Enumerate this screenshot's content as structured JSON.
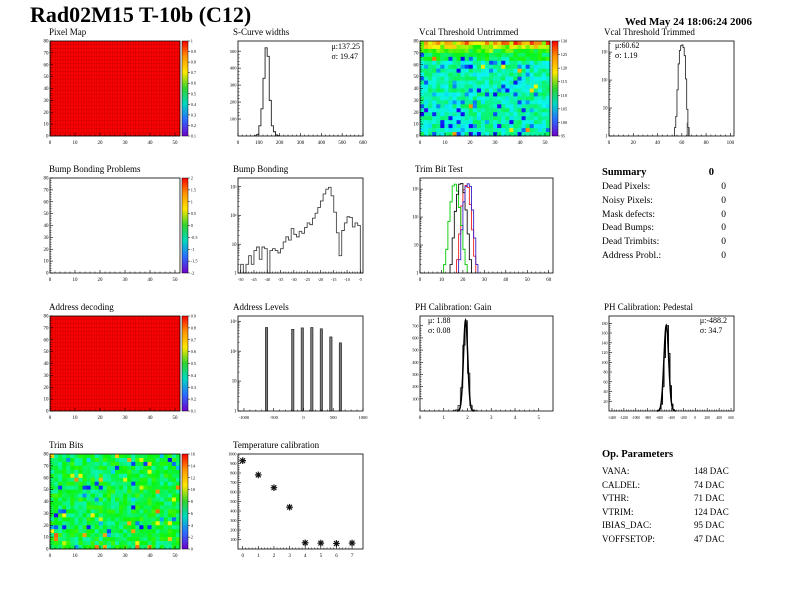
{
  "page": {
    "title": "Rad02M15 T-10b (C12)",
    "timestamp": "Wed May 24 18:06:24 2006"
  },
  "summary": {
    "title": "Summary",
    "total": "0",
    "rows": [
      {
        "label": "Dead Pixels:",
        "value": "0"
      },
      {
        "label": "Noisy Pixels:",
        "value": "0"
      },
      {
        "label": "Mask defects:",
        "value": "0"
      },
      {
        "label": "Dead Bumps:",
        "value": "0"
      },
      {
        "label": "Dead Trimbits:",
        "value": "0"
      },
      {
        "label": "Address Probl.:",
        "value": "0"
      }
    ]
  },
  "op_parameters": {
    "title": "Op. Parameters",
    "rows": [
      {
        "label": "VANA:",
        "value": "148 DAC"
      },
      {
        "label": "CALDEL:",
        "value": "74 DAC"
      },
      {
        "label": "VTHR:",
        "value": "71 DAC"
      },
      {
        "label": "VTRIM:",
        "value": "124 DAC"
      },
      {
        "label": "IBIAS_DAC:",
        "value": "95 DAC"
      },
      {
        "label": "VOFFSETOP:",
        "value": "47 DAC"
      }
    ]
  },
  "chart_data": [
    {
      "target": "pixel-map",
      "title": "Pixel Map",
      "type": "heatmap",
      "variant": "uniform-red",
      "color": "#fb0202",
      "x": {
        "min": 0,
        "max": 52,
        "ticks": [
          0,
          10,
          20,
          30,
          40,
          50
        ]
      },
      "y": {
        "min": 0,
        "max": 80,
        "ticks": [
          0,
          10,
          20,
          30,
          40,
          50,
          60,
          70,
          80
        ]
      },
      "colorbar": {
        "labels": [
          "1",
          "0.9",
          "0.8",
          "0.7",
          "0.6",
          "0.5",
          "0.4",
          "0.3",
          "0.2",
          "0.1"
        ]
      }
    },
    {
      "target": "s-curve",
      "title": "S-Curve widths",
      "type": "histogram",
      "stats": {
        "mu": "μ:137.25",
        "sigma": "σ: 19.47"
      },
      "x": {
        "min": 0,
        "max": 600,
        "ticks": [
          0,
          100,
          200,
          300,
          400,
          500,
          600
        ]
      },
      "y": {
        "min": 0,
        "max": 560,
        "ticks": [
          100,
          200,
          300,
          400,
          500
        ],
        "fs": 4.5
      },
      "bin_width": 10,
      "color": "#222222",
      "bins": [
        [
          80,
          2
        ],
        [
          90,
          10
        ],
        [
          100,
          60
        ],
        [
          110,
          160
        ],
        [
          120,
          340
        ],
        [
          130,
          520
        ],
        [
          140,
          470
        ],
        [
          150,
          210
        ],
        [
          160,
          60
        ],
        [
          170,
          25
        ],
        [
          180,
          6
        ],
        [
          190,
          2
        ]
      ]
    },
    {
      "target": "vcal-untrimmed",
      "title": "Vcal Threshold Untrimmed",
      "type": "heatmap",
      "variant": "noise",
      "noise": {
        "style": "vcal",
        "seed": 7,
        "cols": 32,
        "rows": 24,
        "scale": [
          90,
          130
        ]
      },
      "x": {
        "min": 0,
        "max": 52,
        "ticks": [
          0,
          10,
          20,
          30,
          40,
          50
        ]
      },
      "y": {
        "min": 0,
        "max": 80,
        "ticks": [
          0,
          10,
          20,
          30,
          40,
          50,
          60,
          70,
          80
        ]
      },
      "colorbar": {
        "labels": [
          "130",
          "125",
          "120",
          "115",
          "110",
          "105",
          "100",
          "95"
        ]
      }
    },
    {
      "target": "vcal-trimmed",
      "title": "Vcal Threshold Trimmed",
      "type": "histogram",
      "stats": {
        "mu": "μ:60.62",
        "sigma": "σ: 1.19"
      },
      "x": {
        "min": 0,
        "max": 103,
        "ticks": [
          0,
          20,
          40,
          60,
          80,
          100
        ]
      },
      "y": {
        "log": true,
        "max": 2500,
        "decades": [
          "1",
          "10",
          "10²",
          "10³"
        ]
      },
      "bin_width": 1,
      "color": "#333333",
      "bins": [
        [
          54,
          2
        ],
        [
          55,
          5
        ],
        [
          56,
          45
        ],
        [
          57,
          380
        ],
        [
          58,
          1150
        ],
        [
          59,
          1700
        ],
        [
          60,
          1800
        ],
        [
          61,
          1450
        ],
        [
          62,
          750
        ],
        [
          63,
          110
        ],
        [
          64,
          9
        ],
        [
          65,
          2
        ]
      ],
      "fill_bins": [
        [
          64,
          3
        ],
        [
          65,
          2
        ]
      ]
    },
    {
      "target": "bump-problems",
      "title": "Bump Bonding Problems",
      "type": "heatmap",
      "variant": "empty",
      "x": {
        "min": 0,
        "max": 52,
        "ticks": [
          0,
          10,
          20,
          30,
          40,
          50
        ]
      },
      "y": {
        "min": 0,
        "max": 80,
        "ticks": [
          0,
          10,
          20,
          30,
          40,
          50,
          60,
          70,
          80
        ]
      },
      "colorbar": {
        "labels": [
          "2",
          "1.5",
          "1",
          "0.5",
          "0",
          "-0.5",
          "-1",
          "-1.5",
          "-2"
        ]
      }
    },
    {
      "target": "bump-bonding",
      "title": "Bump Bonding",
      "type": "histogram",
      "x": {
        "min": -51,
        "max": -4,
        "ticks": [
          -50,
          -45,
          -40,
          -35,
          -30,
          -25,
          -20,
          -15,
          -10,
          -5
        ],
        "fs": 4.2
      },
      "y": {
        "log": true,
        "max": 2000,
        "decades": [
          "1",
          "10",
          "10²",
          "10³"
        ]
      },
      "bin_width": 1,
      "color": "#444444",
      "bins": [
        [
          -50,
          2
        ],
        [
          -49,
          1
        ],
        [
          -48,
          2
        ],
        [
          -47,
          4
        ],
        [
          -46,
          2
        ],
        [
          -45,
          6
        ],
        [
          -44,
          8
        ],
        [
          -43,
          3
        ],
        [
          -42,
          8
        ],
        [
          -41,
          7
        ],
        [
          -40,
          1
        ],
        [
          -39,
          6
        ],
        [
          -38,
          7
        ],
        [
          -37,
          6
        ],
        [
          -36,
          5
        ],
        [
          -35,
          7
        ],
        [
          -34,
          12
        ],
        [
          -33,
          18
        ],
        [
          -32,
          14
        ],
        [
          -31,
          35
        ],
        [
          -30,
          22
        ],
        [
          -29,
          18
        ],
        [
          -28,
          28
        ],
        [
          -27,
          24
        ],
        [
          -26,
          38
        ],
        [
          -25,
          55
        ],
        [
          -24,
          48
        ],
        [
          -23,
          80
        ],
        [
          -22,
          120
        ],
        [
          -21,
          190
        ],
        [
          -20,
          320
        ],
        [
          -19,
          560
        ],
        [
          -18,
          820
        ],
        [
          -17,
          950
        ],
        [
          -16,
          480
        ],
        [
          -15,
          130
        ],
        [
          -14,
          25
        ],
        [
          -13,
          4
        ],
        [
          -12,
          30
        ],
        [
          -11,
          55
        ],
        [
          -10,
          90
        ],
        [
          -9,
          85
        ],
        [
          -8,
          40
        ],
        [
          -7,
          55
        ],
        [
          -6,
          45
        ],
        [
          -5,
          1
        ]
      ]
    },
    {
      "target": "trim-bit-test",
      "title": "Trim Bit Test",
      "type": "histogram",
      "x": {
        "min": 0,
        "max": 62,
        "ticks": [
          0,
          10,
          20,
          30,
          40,
          50,
          60
        ]
      },
      "y": {
        "log": true,
        "max": 2500,
        "decades": [
          "1",
          "10",
          "10²",
          "10³"
        ]
      },
      "bin_width": 1,
      "series": [
        {
          "name": "trim-bit-14",
          "color": "#ee2222",
          "bins": [
            [
              17,
              3
            ],
            [
              18,
              25
            ],
            [
              19,
              250
            ],
            [
              20,
              950
            ],
            [
              21,
              1350
            ],
            [
              22,
              1150
            ],
            [
              23,
              280
            ],
            [
              24,
              35
            ],
            [
              25,
              4
            ]
          ]
        },
        {
          "name": "trim-bit-11",
          "color": "#00cc00",
          "bins": [
            [
              11,
              2
            ],
            [
              12,
              7
            ],
            [
              13,
              70
            ],
            [
              14,
              350
            ],
            [
              15,
              1300
            ],
            [
              16,
              1500
            ],
            [
              17,
              850
            ],
            [
              18,
              220
            ],
            [
              19,
              50
            ],
            [
              20,
              7
            ],
            [
              21,
              2
            ]
          ]
        },
        {
          "name": "trim-bit-13",
          "color": "#111111",
          "bins": [
            [
              14,
              2
            ],
            [
              15,
              18
            ],
            [
              16,
              160
            ],
            [
              17,
              650
            ],
            [
              18,
              1500
            ],
            [
              19,
              1600
            ],
            [
              20,
              750
            ],
            [
              21,
              180
            ],
            [
              22,
              25
            ],
            [
              23,
              3
            ]
          ]
        },
        {
          "name": "trim-bit-7",
          "color": "#3a22c8",
          "bins": [
            [
              18,
              3
            ],
            [
              19,
              35
            ],
            [
              20,
              350
            ],
            [
              21,
              1250
            ],
            [
              22,
              1550
            ],
            [
              23,
              1250
            ],
            [
              24,
              180
            ],
            [
              25,
              18
            ],
            [
              26,
              2
            ]
          ]
        }
      ]
    },
    {
      "target": "addr-decoding",
      "title": "Address decoding",
      "type": "heatmap",
      "variant": "uniform-red",
      "color": "#fb0202",
      "x": {
        "min": 0,
        "max": 52,
        "ticks": [
          0,
          10,
          20,
          30,
          40,
          50
        ]
      },
      "y": {
        "min": 0,
        "max": 80,
        "ticks": [
          0,
          10,
          20,
          30,
          40,
          50,
          60,
          70,
          80
        ]
      },
      "colorbar": {
        "labels": [
          "0.9",
          "0.8",
          "0.7",
          "0.6",
          "0.5",
          "0.4",
          "0.3",
          "0.2",
          "0.1"
        ]
      }
    },
    {
      "target": "addr-levels",
      "title": "Address Levels",
      "type": "spikes",
      "x": {
        "min": -1100,
        "max": 1000,
        "ticks": [
          -1000,
          -500,
          0,
          500,
          1000
        ],
        "fs": 4.5
      },
      "y": {
        "log": true,
        "max": 1500,
        "decades": [
          "1",
          "10",
          "10²",
          "10³"
        ]
      },
      "spikes": [
        [
          -620,
          620
        ],
        [
          -180,
          540
        ],
        [
          -20,
          600
        ],
        [
          140,
          620
        ],
        [
          300,
          560
        ],
        [
          460,
          300
        ],
        [
          620,
          190
        ]
      ]
    },
    {
      "target": "ph-gain",
      "title": "PH Calibration: Gain",
      "type": "histogram",
      "stats": {
        "mu": "μ: 1.88",
        "sigma": "σ: 0.08"
      },
      "x": {
        "min": 0,
        "max": 5.6,
        "ticks": [
          0,
          1,
          2,
          3,
          4,
          5
        ]
      },
      "y": {
        "min": 0,
        "max": 780,
        "ticks": [
          100,
          200,
          300,
          400,
          500,
          600,
          700
        ],
        "fs": 4.2
      },
      "bin_width": 0.1,
      "color": "#333333",
      "bins": [
        [
          1.4,
          3
        ],
        [
          1.5,
          10
        ],
        [
          1.6,
          45
        ],
        [
          1.7,
          190
        ],
        [
          1.8,
          540
        ],
        [
          1.9,
          740
        ],
        [
          2.0,
          310
        ],
        [
          2.1,
          45
        ],
        [
          2.2,
          9
        ],
        [
          2.3,
          2
        ]
      ],
      "fit": {
        "mu": 1.92,
        "sigma": 0.09,
        "peak": 745
      }
    },
    {
      "target": "ph-pedestal",
      "title": "PH Calibration: Pedestal",
      "type": "histogram",
      "stats": {
        "mu": "μ:-488.2",
        "sigma": "σ: 34.7"
      },
      "x": {
        "min": -1450,
        "max": 650,
        "ticks": [
          -1400,
          -1200,
          -1000,
          -800,
          -600,
          -400,
          -200,
          0,
          200,
          400,
          600
        ],
        "fs": 3.6
      },
      "y": {
        "min": 0,
        "max": 195,
        "ticks": [
          20,
          40,
          60,
          80,
          100,
          120,
          140,
          160,
          180
        ],
        "fs": 4.0
      },
      "bin_width": 25,
      "color": "#000000",
      "bins": [
        [
          -600,
          4
        ],
        [
          -575,
          14
        ],
        [
          -550,
          50
        ],
        [
          -525,
          110
        ],
        [
          -500,
          168
        ],
        [
          -475,
          175
        ],
        [
          -450,
          118
        ],
        [
          -425,
          52
        ],
        [
          -400,
          14
        ],
        [
          -375,
          3
        ]
      ],
      "fit": {
        "mu": -487,
        "sigma": 40,
        "peak": 176
      }
    },
    {
      "target": "trim-bits",
      "title": "Trim Bits",
      "type": "heatmap",
      "variant": "noise",
      "noise": {
        "style": "trim",
        "seed": 3,
        "cols": 32,
        "rows": 24,
        "base": 8,
        "scale": [
          0,
          16
        ]
      },
      "x": {
        "min": 0,
        "max": 52,
        "ticks": [
          0,
          10,
          20,
          30,
          40,
          50
        ]
      },
      "y": {
        "min": 0,
        "max": 80,
        "ticks": [
          0,
          10,
          20,
          30,
          40,
          50,
          60,
          70,
          80
        ]
      },
      "colorbar": {
        "labels": [
          "16",
          "14",
          "12",
          "10",
          "8",
          "6",
          "4",
          "2",
          "0"
        ]
      }
    },
    {
      "target": "temp-cal",
      "title": "Temperature calibration",
      "type": "scatter",
      "x": {
        "min": -0.3,
        "max": 7.7,
        "ticks": [
          0,
          1,
          2,
          3,
          4,
          5,
          6,
          7
        ]
      },
      "y": {
        "min": 0,
        "max": 1000,
        "ticks": [
          100,
          200,
          300,
          400,
          500,
          600,
          700,
          800,
          900,
          1000
        ],
        "fs": 4.2
      },
      "points": [
        [
          0,
          930
        ],
        [
          1,
          780
        ],
        [
          2,
          645
        ],
        [
          3,
          440
        ],
        [
          4,
          65
        ],
        [
          5,
          62
        ],
        [
          6,
          58
        ],
        [
          7,
          63
        ]
      ]
    }
  ]
}
